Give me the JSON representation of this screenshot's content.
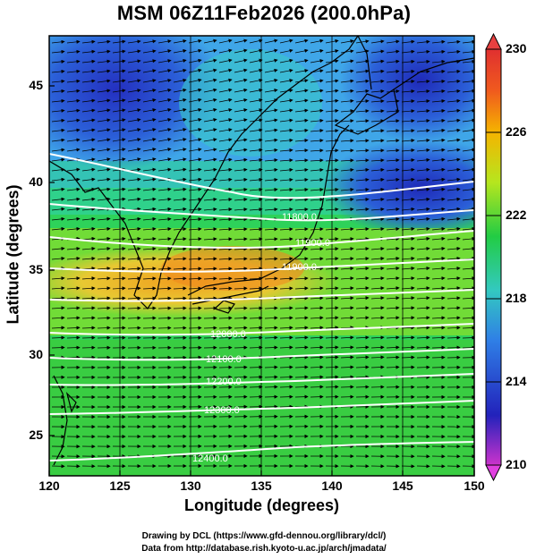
{
  "title": "MSM 06Z11Feb2026 (200.0hPa)",
  "x_axis": {
    "label": "Longitude (degrees)",
    "ticks": [
      "120",
      "125",
      "130",
      "135",
      "140",
      "145",
      "150"
    ]
  },
  "y_axis": {
    "label": "Latitude  (degrees)",
    "ticks": [
      "25",
      "30",
      "35",
      "40",
      "45"
    ]
  },
  "colorbar": {
    "ticks": [
      "210",
      "214",
      "218",
      "222",
      "226",
      "230"
    ],
    "colors": [
      "#cc33cc",
      "#2222bb",
      "#2f7fe6",
      "#33c9c0",
      "#22cc44",
      "#b6e61e",
      "#f5b400",
      "#f05a1e",
      "#e03030"
    ]
  },
  "contour_labels": [
    "11800.0",
    "11900.0",
    "11900.0",
    "12000.0",
    "12100.0",
    "12200.0",
    "12300.0",
    "12400.0"
  ],
  "credits": {
    "line1": "Drawing by DCL (https://www.gfd-dennou.org/library/dcl/)",
    "line2": "Data from http://database.rish.kyoto-u.ac.jp/arch/jmadata/"
  }
}
